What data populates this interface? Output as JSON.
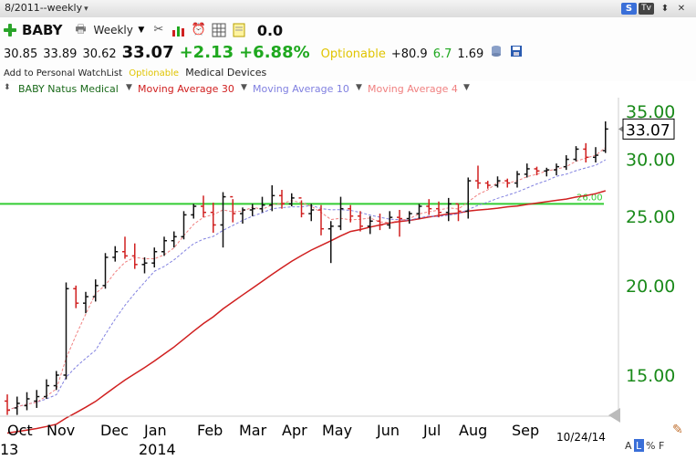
{
  "window": {
    "title": "8/2011--weekly",
    "buttons": [
      "S",
      "Tv",
      "⬍",
      "✕"
    ]
  },
  "header": {
    "symbol": "BABY",
    "period": "Weekly",
    "zero_value": "0.0",
    "quote": {
      "open": "30.85",
      "high": "33.89",
      "low": "30.62",
      "last": "33.07",
      "change": "+2.13",
      "change_pct": "+6.88%",
      "optionable": "Optionable",
      "rating1": "+80.9",
      "rating2": "6.7",
      "rating3": "1.69"
    },
    "add_watchlist": "Add to Personal WatchList",
    "optionable_small": "Optionable",
    "industry": "Medical Devices"
  },
  "indicators": {
    "name": "BABY Natus Medical",
    "ma30": "Moving Average 30",
    "ma10": "Moving Average 10",
    "ma4": "Moving Average 4"
  },
  "colors": {
    "ma30": "#d02020",
    "ma10": "#8080e0",
    "ma4": "#f08080",
    "hline": "#33cc33",
    "axis_text": "#1a8a1a",
    "up_bar": "#111111",
    "down_bar": "#d02020"
  },
  "chart_data": {
    "type": "ohlc",
    "y_ticks": [
      "35.00",
      "30.00",
      "25.00",
      "20.00",
      "15.00"
    ],
    "last_price_label": "33.07",
    "hline_value": 26.0,
    "hline_label": "26.00",
    "x_month_labels": [
      "Oct",
      "Nov",
      "Dec",
      "Jan",
      "Feb",
      "Mar",
      "Apr",
      "May",
      "Jun",
      "Jul",
      "Aug",
      "Sep"
    ],
    "x_year_labels": [
      "13",
      "2014"
    ],
    "date_label": "10/24/14",
    "bottom_icons": [
      "A",
      "L",
      "%",
      "F"
    ],
    "bars": [
      {
        "h": 14.1,
        "l": 13.2,
        "o": 13.8,
        "c": 13.4
      },
      {
        "h": 14.0,
        "l": 13.2,
        "o": 13.5,
        "c": 13.7
      },
      {
        "h": 14.2,
        "l": 13.4,
        "o": 13.6,
        "c": 13.9
      },
      {
        "h": 14.3,
        "l": 13.5,
        "o": 13.8,
        "c": 14.0
      },
      {
        "h": 14.8,
        "l": 13.9,
        "o": 14.0,
        "c": 14.5
      },
      {
        "h": 15.2,
        "l": 14.3,
        "o": 14.5,
        "c": 15.0
      },
      {
        "h": 20.2,
        "l": 14.8,
        "o": 15.0,
        "c": 19.8
      },
      {
        "h": 20.0,
        "l": 18.6,
        "o": 19.8,
        "c": 18.9
      },
      {
        "h": 19.6,
        "l": 18.3,
        "o": 18.9,
        "c": 19.3
      },
      {
        "h": 20.4,
        "l": 19.0,
        "o": 19.3,
        "c": 20.0
      },
      {
        "h": 22.2,
        "l": 19.8,
        "o": 20.0,
        "c": 21.9
      },
      {
        "h": 22.7,
        "l": 21.6,
        "o": 21.9,
        "c": 22.3
      },
      {
        "h": 23.4,
        "l": 21.8,
        "o": 22.3,
        "c": 22.0
      },
      {
        "h": 22.9,
        "l": 21.1,
        "o": 22.0,
        "c": 21.4
      },
      {
        "h": 21.9,
        "l": 20.8,
        "o": 21.4,
        "c": 21.5
      },
      {
        "h": 22.6,
        "l": 21.2,
        "o": 21.5,
        "c": 22.3
      },
      {
        "h": 23.4,
        "l": 22.0,
        "o": 22.3,
        "c": 23.1
      },
      {
        "h": 23.8,
        "l": 22.6,
        "o": 23.1,
        "c": 23.4
      },
      {
        "h": 25.4,
        "l": 23.2,
        "o": 23.4,
        "c": 25.1
      },
      {
        "h": 26.0,
        "l": 24.8,
        "o": 25.1,
        "c": 25.8
      },
      {
        "h": 26.7,
        "l": 24.9,
        "o": 25.8,
        "c": 25.3
      },
      {
        "h": 26.1,
        "l": 23.7,
        "o": 25.3,
        "c": 24.3
      },
      {
        "h": 27.0,
        "l": 22.6,
        "o": 24.3,
        "c": 26.6
      },
      {
        "h": 26.4,
        "l": 24.5,
        "o": 26.6,
        "c": 25.2
      },
      {
        "h": 25.7,
        "l": 24.4,
        "o": 25.2,
        "c": 25.5
      },
      {
        "h": 26.0,
        "l": 25.0,
        "o": 25.5,
        "c": 25.6
      },
      {
        "h": 26.6,
        "l": 25.3,
        "o": 25.6,
        "c": 25.9
      },
      {
        "h": 27.6,
        "l": 25.4,
        "o": 25.9,
        "c": 26.7
      },
      {
        "h": 27.2,
        "l": 25.6,
        "o": 26.7,
        "c": 26.0
      },
      {
        "h": 26.9,
        "l": 25.8,
        "o": 26.0,
        "c": 26.5
      },
      {
        "h": 26.3,
        "l": 24.9,
        "o": 26.5,
        "c": 25.2
      },
      {
        "h": 26.0,
        "l": 24.6,
        "o": 25.2,
        "c": 25.5
      },
      {
        "h": 25.9,
        "l": 23.5,
        "o": 25.5,
        "c": 24.0
      },
      {
        "h": 24.6,
        "l": 21.5,
        "o": 24.0,
        "c": 24.2
      },
      {
        "h": 26.6,
        "l": 23.9,
        "o": 24.2,
        "c": 25.6
      },
      {
        "h": 25.9,
        "l": 24.5,
        "o": 25.6,
        "c": 25.0
      },
      {
        "h": 25.4,
        "l": 23.8,
        "o": 25.0,
        "c": 24.2
      },
      {
        "h": 25.0,
        "l": 23.6,
        "o": 24.2,
        "c": 24.6
      },
      {
        "h": 25.2,
        "l": 23.9,
        "o": 24.6,
        "c": 24.3
      },
      {
        "h": 25.4,
        "l": 24.0,
        "o": 24.3,
        "c": 24.9
      },
      {
        "h": 25.5,
        "l": 23.4,
        "o": 24.9,
        "c": 24.8
      },
      {
        "h": 25.4,
        "l": 24.4,
        "o": 24.8,
        "c": 25.2
      },
      {
        "h": 26.0,
        "l": 24.8,
        "o": 25.2,
        "c": 25.8
      },
      {
        "h": 26.4,
        "l": 25.1,
        "o": 25.8,
        "c": 25.6
      },
      {
        "h": 26.2,
        "l": 24.9,
        "o": 25.6,
        "c": 25.3
      },
      {
        "h": 26.5,
        "l": 24.6,
        "o": 25.3,
        "c": 26.0
      },
      {
        "h": 26.0,
        "l": 24.6,
        "o": 26.0,
        "c": 25.4
      },
      {
        "h": 28.3,
        "l": 24.8,
        "o": 25.4,
        "c": 28.0
      },
      {
        "h": 29.4,
        "l": 27.3,
        "o": 28.0,
        "c": 27.8
      },
      {
        "h": 28.0,
        "l": 27.3,
        "o": 27.8,
        "c": 27.6
      },
      {
        "h": 28.4,
        "l": 27.4,
        "o": 27.6,
        "c": 28.0
      },
      {
        "h": 28.2,
        "l": 27.4,
        "o": 28.0,
        "c": 27.8
      },
      {
        "h": 28.9,
        "l": 27.4,
        "o": 27.8,
        "c": 28.6
      },
      {
        "h": 29.6,
        "l": 28.3,
        "o": 28.6,
        "c": 29.1
      },
      {
        "h": 29.3,
        "l": 28.5,
        "o": 29.1,
        "c": 28.9
      },
      {
        "h": 29.2,
        "l": 28.4,
        "o": 28.9,
        "c": 29.0
      },
      {
        "h": 29.6,
        "l": 28.5,
        "o": 29.0,
        "c": 29.3
      },
      {
        "h": 30.4,
        "l": 29.0,
        "o": 29.3,
        "c": 30.0
      },
      {
        "h": 31.3,
        "l": 29.8,
        "o": 30.0,
        "c": 31.0
      },
      {
        "h": 31.6,
        "l": 29.7,
        "o": 31.0,
        "c": 30.2
      },
      {
        "h": 31.2,
        "l": 29.7,
        "o": 30.2,
        "c": 30.4
      },
      {
        "h": 33.89,
        "l": 30.62,
        "o": 30.85,
        "c": 33.07
      }
    ]
  }
}
